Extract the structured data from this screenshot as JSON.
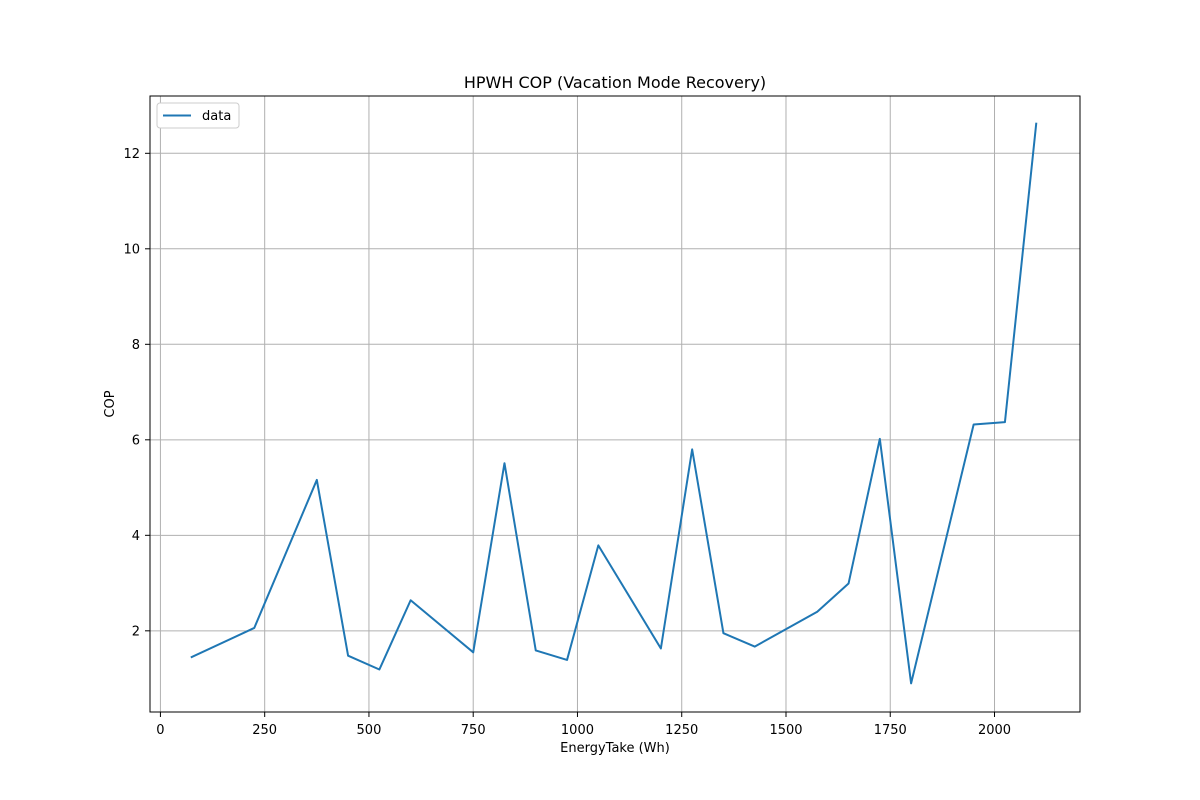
{
  "chart_data": {
    "type": "line",
    "title": "HPWH COP (Vacation Mode Recovery)",
    "xlabel": "EnergyTake (Wh)",
    "ylabel": "COP",
    "xlim": [
      -25,
      2205
    ],
    "ylim": [
      0.3,
      13.2
    ],
    "xticks": [
      0,
      250,
      500,
      750,
      1000,
      1250,
      1500,
      1750,
      2000
    ],
    "yticks": [
      2,
      4,
      6,
      8,
      10,
      12
    ],
    "grid": true,
    "legend_position": "top-left",
    "series": [
      {
        "name": "data",
        "color": "#1f77b4",
        "x": [
          75,
          225,
          375,
          450,
          525,
          600,
          750,
          825,
          900,
          975,
          1050,
          1200,
          1275,
          1350,
          1425,
          1575,
          1650,
          1725,
          1800,
          1950,
          2025,
          2100
        ],
        "y": [
          1.45,
          2.06,
          5.16,
          1.48,
          1.19,
          2.64,
          1.55,
          5.51,
          1.59,
          1.39,
          3.79,
          1.63,
          5.8,
          1.95,
          1.67,
          2.4,
          2.99,
          6.02,
          0.9,
          6.32,
          6.37,
          12.62
        ]
      }
    ]
  }
}
